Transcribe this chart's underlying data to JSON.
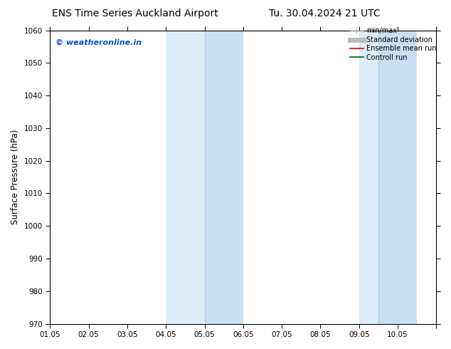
{
  "title_left": "ENS Time Series Auckland Airport",
  "title_right": "Tu. 30.04.2024 21 UTC",
  "ylabel": "Surface Pressure (hPa)",
  "ylim": [
    970,
    1060
  ],
  "yticks": [
    970,
    980,
    990,
    1000,
    1010,
    1020,
    1030,
    1040,
    1050,
    1060
  ],
  "xtick_positions": [
    0,
    1,
    2,
    3,
    4,
    5,
    6,
    7,
    8,
    9,
    10
  ],
  "xtick_labels": [
    "01.05",
    "02.05",
    "03.05",
    "04.05",
    "05.05",
    "06.05",
    "07.05",
    "08.05",
    "09.05",
    "10.05",
    ""
  ],
  "shade_bands": [
    {
      "xstart": 3.0,
      "xend": 4.0,
      "lighter": true
    },
    {
      "xstart": 4.0,
      "xend": 5.0,
      "lighter": false
    },
    {
      "xstart": 8.0,
      "xend": 8.5,
      "lighter": true
    },
    {
      "xstart": 8.5,
      "xend": 9.0,
      "lighter": false
    }
  ],
  "shade_color_light": "#ddeef8",
  "shade_color_dark": "#c8e0f4",
  "watermark_text": "© weatheronline.in",
  "watermark_color": "#0055cc",
  "legend_entries": [
    {
      "label": "min/max",
      "color": "#999999",
      "lw": 1.0,
      "style": "minmax"
    },
    {
      "label": "Standard deviation",
      "color": "#bbbbbb",
      "lw": 5,
      "style": "solid"
    },
    {
      "label": "Ensemble mean run",
      "color": "#dd0000",
      "lw": 1.2,
      "style": "solid"
    },
    {
      "label": "Controll run",
      "color": "#006600",
      "lw": 1.2,
      "style": "solid"
    }
  ],
  "background_color": "#ffffff",
  "tick_fontsize": 7.5,
  "ylabel_fontsize": 8.5,
  "title_fontsize": 10,
  "watermark_fontsize": 8,
  "legend_fontsize": 7
}
